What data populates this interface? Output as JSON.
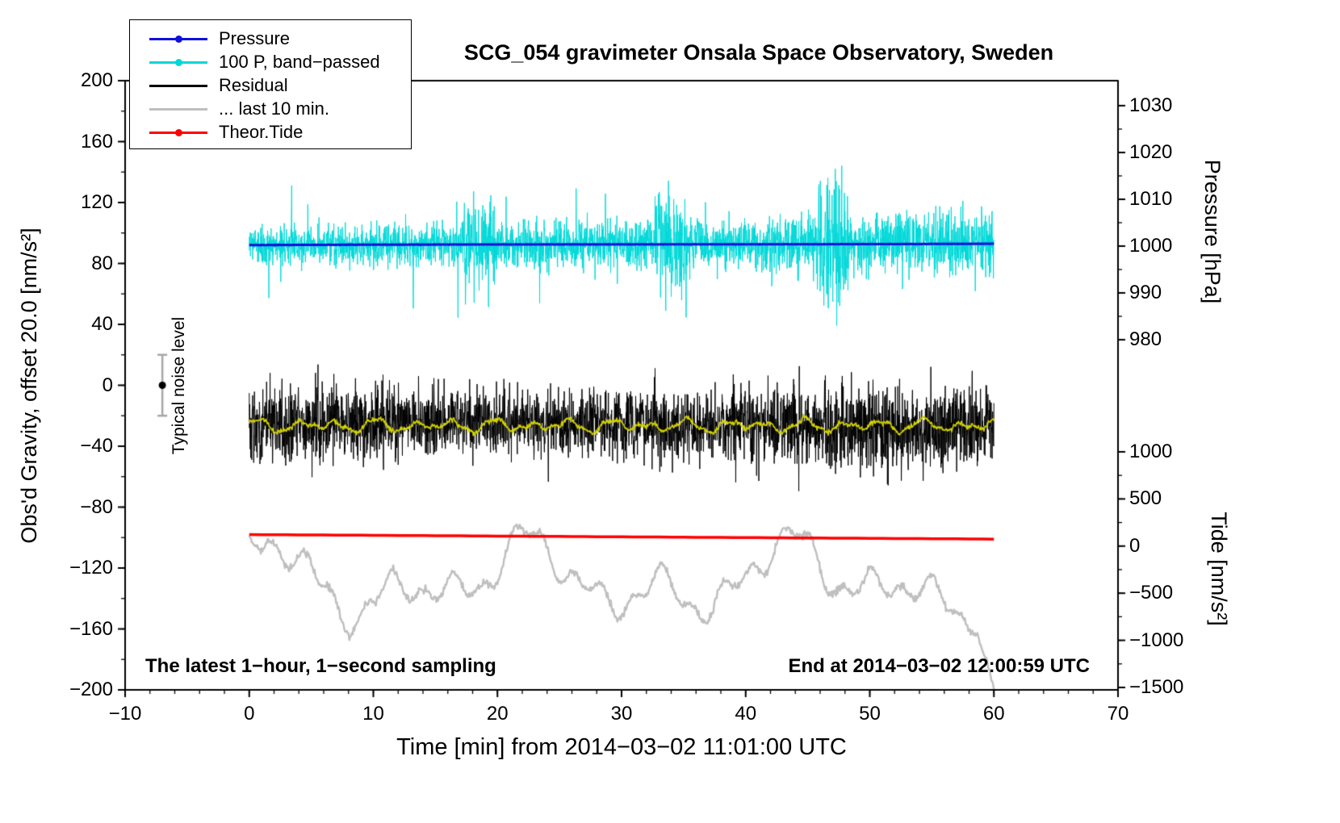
{
  "title": "SCG_054 gravimeter Onsala Space Observatory, Sweden",
  "legend": {
    "items": [
      {
        "label": "Pressure",
        "color": "#1010dc",
        "marker": true
      },
      {
        "label": "100 P, band−passed",
        "color": "#00d8d8",
        "marker": true
      },
      {
        "label": "Residual",
        "color": "#000000",
        "marker": false
      },
      {
        "label": "... last 10 min.",
        "color": "#bfbfbf",
        "marker": false
      },
      {
        "label": "Theor.Tide",
        "color": "#ff0000",
        "marker": true
      }
    ]
  },
  "annotations": {
    "noise_label": "Typical noise level",
    "sampling_note": "The latest 1−hour, 1−second sampling",
    "end_note": "End at 2014−03−02 12:00:59 UTC"
  },
  "chart_data": {
    "type": "line",
    "title": "SCG_054 gravimeter Onsala Space Observatory, Sweden",
    "xlabel": "Time [min] from 2014−03−02 11:01:00 UTC",
    "ylabel_left": "Obs'd Gravity, offset 20.0 [nm/s²]",
    "ylabel_pressure": "Pressure [hPa]",
    "ylabel_tide": "Tide [nm/s²]",
    "grid": false,
    "legend_position": "top-left",
    "x_axis": {
      "min": -10,
      "max": 70,
      "minor_step": 2,
      "major_ticks": [
        -10,
        0,
        10,
        20,
        30,
        40,
        50,
        60,
        70
      ],
      "tick_labels": [
        "−10",
        "0",
        "10",
        "20",
        "30",
        "40",
        "50",
        "60",
        "70"
      ]
    },
    "y_left": {
      "min": -200,
      "max": 200,
      "minor_step": 20,
      "major_ticks": [
        200,
        160,
        120,
        80,
        40,
        0,
        -40,
        -80,
        -120,
        -160,
        -200
      ],
      "tick_labels": [
        "200",
        "160",
        "120",
        "80",
        "40",
        "0",
        "−40",
        "−80",
        "−120",
        "−160",
        "−200"
      ]
    },
    "pressure_axis": {
      "value_range": [
        980,
        1030
      ],
      "left_unit_range": [
        29.9,
        183.6
      ],
      "minor_step": 5,
      "major_ticks": [
        1030,
        1020,
        1010,
        1000,
        990,
        980
      ],
      "tick_labels": [
        "1030",
        "1020",
        "1010",
        "1000",
        "990",
        "980"
      ]
    },
    "tide_axis": {
      "value_range": [
        -1500,
        1000
      ],
      "left_unit_range": [
        -198.4,
        -43.7
      ],
      "minor_step": 250,
      "major_ticks": [
        1000,
        500,
        0,
        -500,
        -1000,
        -1500
      ],
      "tick_labels": [
        "1000",
        "500",
        "0",
        "−500",
        "−1000",
        "−1500"
      ]
    },
    "noise_marker": {
      "x_min": -7,
      "center_nms2": 0,
      "half_range_nms2": 20,
      "dot_color": "#000000",
      "bar_color": "#a6a6a6"
    },
    "time_span_min": 60,
    "seed": 20140302,
    "series": [
      {
        "id": "last10",
        "name": "... last 10 min.",
        "color": "#bfbfbf",
        "width": 2.5,
        "mean_nms2": -128,
        "components": [
          [
            210,
            16
          ],
          [
            97,
            12
          ],
          [
            53,
            9
          ],
          [
            23,
            6
          ]
        ],
        "end_drop_to_nms2": -200
      },
      {
        "id": "tide",
        "name": "Theor.Tide",
        "color": "#ff0000",
        "width": 3.5,
        "start_nms2": 122,
        "end_nms2": 74
      },
      {
        "id": "residual",
        "name": "Residual",
        "color": "#000000",
        "width": 1,
        "mean_nms2": -26,
        "std_nms2": 12,
        "min_nms2": -80,
        "max_nms2": 33
      },
      {
        "id": "resid_smooth",
        "name": "Residual band-passed",
        "color": "#d2d200",
        "width": 1.6,
        "mean_nms2": -26.5
      },
      {
        "id": "bandpassed",
        "name": "100 P, band−passed",
        "color": "#00d8d8",
        "width": 1,
        "base_std": 6,
        "end_std": 10.5,
        "burst_times_min": [
          18.5,
          34,
          47
        ],
        "min_nms2": 38,
        "max_nms2": 150
      },
      {
        "id": "pressure",
        "name": "Pressure",
        "color": "#1010dc",
        "width": 3,
        "start_hpa": 1000.22,
        "end_hpa": 1000.52
      }
    ]
  }
}
